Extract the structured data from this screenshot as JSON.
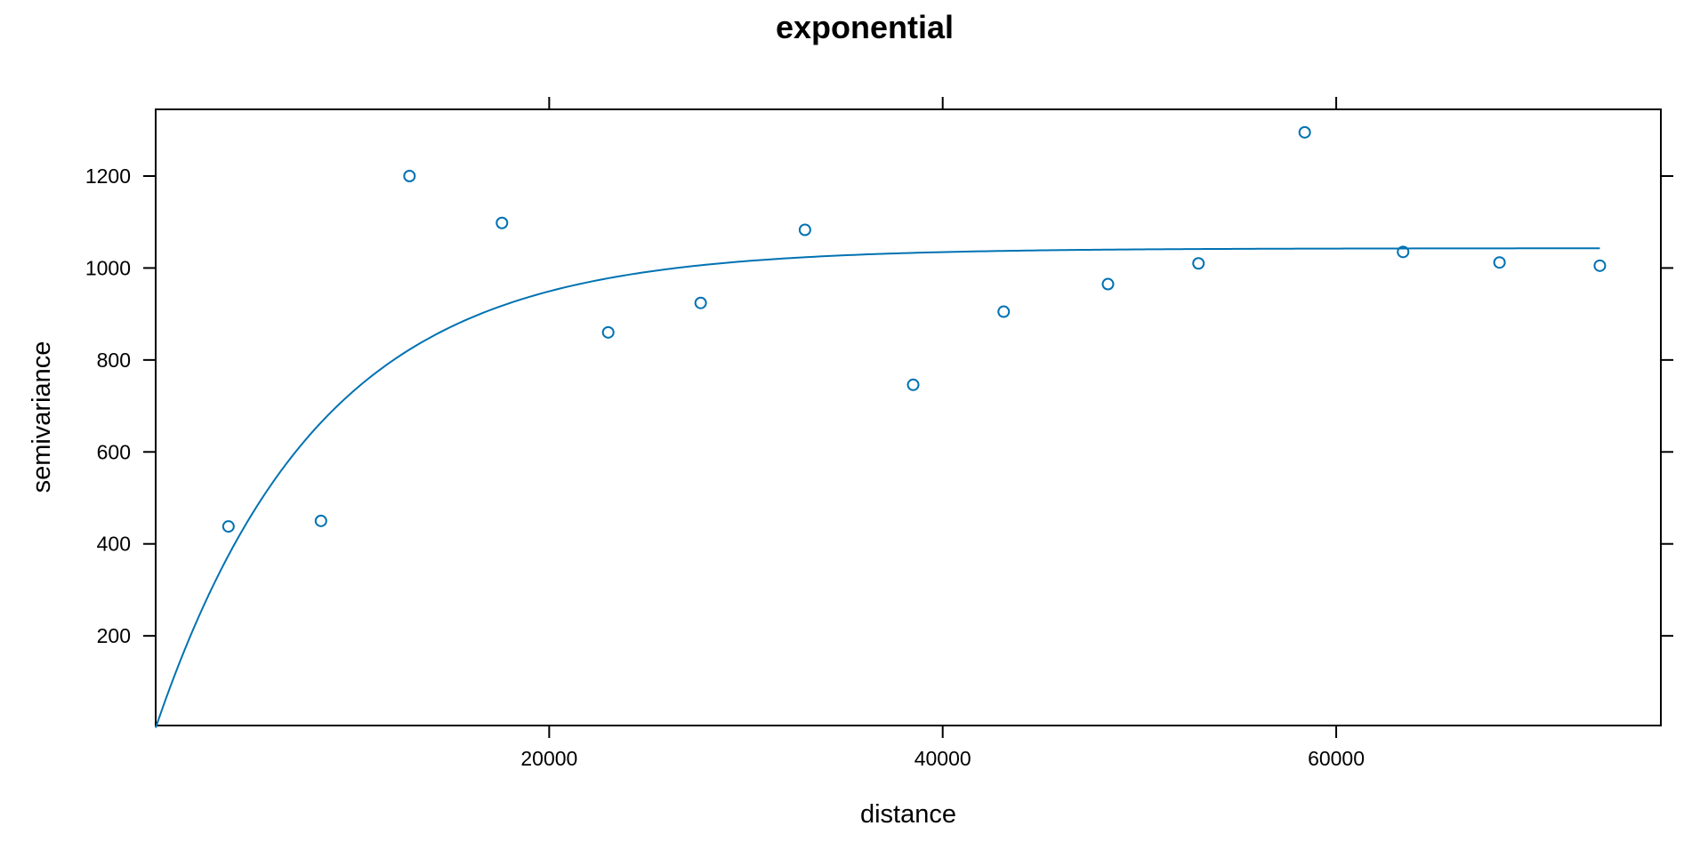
{
  "colors": {
    "series": "#0072b2",
    "axis": "#000000",
    "background": "#ffffff"
  },
  "chart_data": {
    "type": "scatter",
    "title": "exponential",
    "xlabel": "distance",
    "ylabel": "semivariance",
    "xlim": [
      0,
      76500
    ],
    "ylim": [
      5,
      1345
    ],
    "grid": false,
    "legend": "none",
    "x_ticks": [
      20000,
      40000,
      60000
    ],
    "y_ticks": [
      200,
      400,
      600,
      800,
      1000,
      1200
    ],
    "x_tick_labels": [
      "20000",
      "40000",
      "60000"
    ],
    "y_tick_labels": [
      "200",
      "400",
      "600",
      "800",
      "1000",
      "1200"
    ],
    "series": [
      {
        "type": "scatter",
        "marker": "open-circle",
        "points": [
          {
            "x": 3700,
            "y": 438
          },
          {
            "x": 8400,
            "y": 450
          },
          {
            "x": 12900,
            "y": 1200
          },
          {
            "x": 17600,
            "y": 1098
          },
          {
            "x": 23000,
            "y": 860
          },
          {
            "x": 27700,
            "y": 924
          },
          {
            "x": 33000,
            "y": 1083
          },
          {
            "x": 38500,
            "y": 746
          },
          {
            "x": 43100,
            "y": 905
          },
          {
            "x": 48400,
            "y": 965
          },
          {
            "x": 53000,
            "y": 1010
          },
          {
            "x": 58400,
            "y": 1295
          },
          {
            "x": 63400,
            "y": 1035
          },
          {
            "x": 68300,
            "y": 1012
          },
          {
            "x": 73400,
            "y": 1005
          }
        ]
      },
      {
        "type": "line",
        "model": "exponential",
        "nugget": 0,
        "sill": 1043,
        "range": 8300,
        "x_max": 73400
      }
    ]
  }
}
